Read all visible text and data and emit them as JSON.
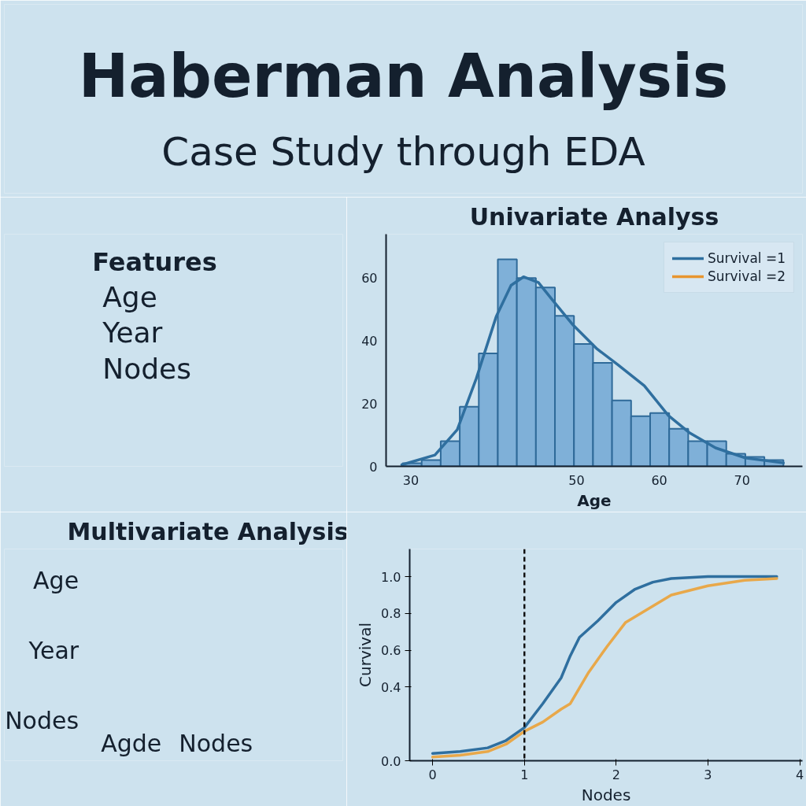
{
  "chart_data": [
    {
      "type": "other",
      "title": "Haberman Analysis",
      "subtitle": "Case Study through EDA"
    },
    {
      "type": "other",
      "title": "Features",
      "annotations": [
        "Age",
        "Year",
        "Nodes"
      ]
    },
    {
      "type": "histogram",
      "title": "Univariate Analyss",
      "xlabel": "Age",
      "color": "#7fb0d8",
      "bins": [
        29.0,
        31.3,
        33.6,
        35.9,
        38.2,
        40.5,
        42.8,
        45.1,
        47.4,
        49.7,
        52.0,
        54.3,
        56.6,
        58.9,
        61.2,
        63.5,
        65.8,
        68.1,
        70.4,
        72.7,
        75.0
      ],
      "values": [
        1,
        2,
        8,
        19,
        36,
        66,
        60,
        57,
        48,
        39,
        33,
        21,
        16,
        17,
        12,
        8,
        8,
        4,
        3,
        2
      ],
      "xlim": [
        27,
        77.3
      ],
      "xticks": [
        30,
        50,
        60,
        70
      ],
      "ylim": [
        0,
        74
      ],
      "yticks": [
        0,
        20,
        40,
        60
      ],
      "legend": "top right",
      "series": [
        {
          "type": "line",
          "name": "Survival =1",
          "color": "#2f6f9f",
          "x": [
            28.9,
            32.9,
            35.6,
            37.9,
            40.3,
            42.1,
            43.6,
            45.4,
            47.1,
            49.6,
            52.5,
            55,
            58.2,
            61.1,
            63.6,
            66.8,
            70.4,
            75
          ],
          "values": [
            0.5,
            3.6,
            11.7,
            28,
            47.7,
            57.7,
            60.4,
            58.6,
            53,
            45,
            37.4,
            32.4,
            25.7,
            16.2,
            10.8,
            5.9,
            2.7,
            1.1
          ]
        },
        {
          "type": "line",
          "name": "Survival =2",
          "color": "#e8952f"
        }
      ]
    },
    {
      "type": "other",
      "title": "Multivariate Analysis",
      "annotations": [
        "Age",
        "Year",
        "Nodes",
        "Agde",
        "Nodes"
      ]
    },
    {
      "type": "line",
      "xlabel": "Nodes",
      "ylabel": "Curvival",
      "xlim": [
        -0.25,
        4.03
      ],
      "xticks": [
        0,
        1,
        2,
        3,
        4
      ],
      "ylim": [
        0,
        1.15
      ],
      "yticks": [
        {
          "value": 0,
          "label": "0.0"
        },
        0.4,
        0.6,
        0.8,
        {
          "value": 1,
          "label": "1.0"
        }
      ],
      "ref_lines": [
        {
          "axis": "x",
          "value": 1,
          "color": "#111111",
          "line_style": "dashed"
        }
      ],
      "series": [
        {
          "color": "#2f6f9f",
          "x": [
            0,
            0.3,
            0.6,
            0.8,
            1.0,
            1.2,
            1.4,
            1.5,
            1.6,
            1.8,
            2.0,
            2.2,
            2.4,
            2.6,
            3.0,
            3.75
          ],
          "values": [
            0.04,
            0.05,
            0.07,
            0.11,
            0.18,
            0.31,
            0.45,
            0.57,
            0.67,
            0.76,
            0.86,
            0.93,
            0.97,
            0.99,
            1.0,
            1.0
          ]
        },
        {
          "color": "#e8a84a",
          "x": [
            0,
            0.3,
            0.6,
            0.8,
            1.0,
            1.2,
            1.4,
            1.5,
            1.7,
            1.9,
            2.1,
            2.4,
            2.6,
            3.0,
            3.4,
            3.75
          ],
          "values": [
            0.02,
            0.03,
            0.05,
            0.09,
            0.16,
            0.21,
            0.28,
            0.31,
            0.48,
            0.62,
            0.75,
            0.84,
            0.9,
            0.95,
            0.98,
            0.99
          ]
        }
      ]
    }
  ]
}
